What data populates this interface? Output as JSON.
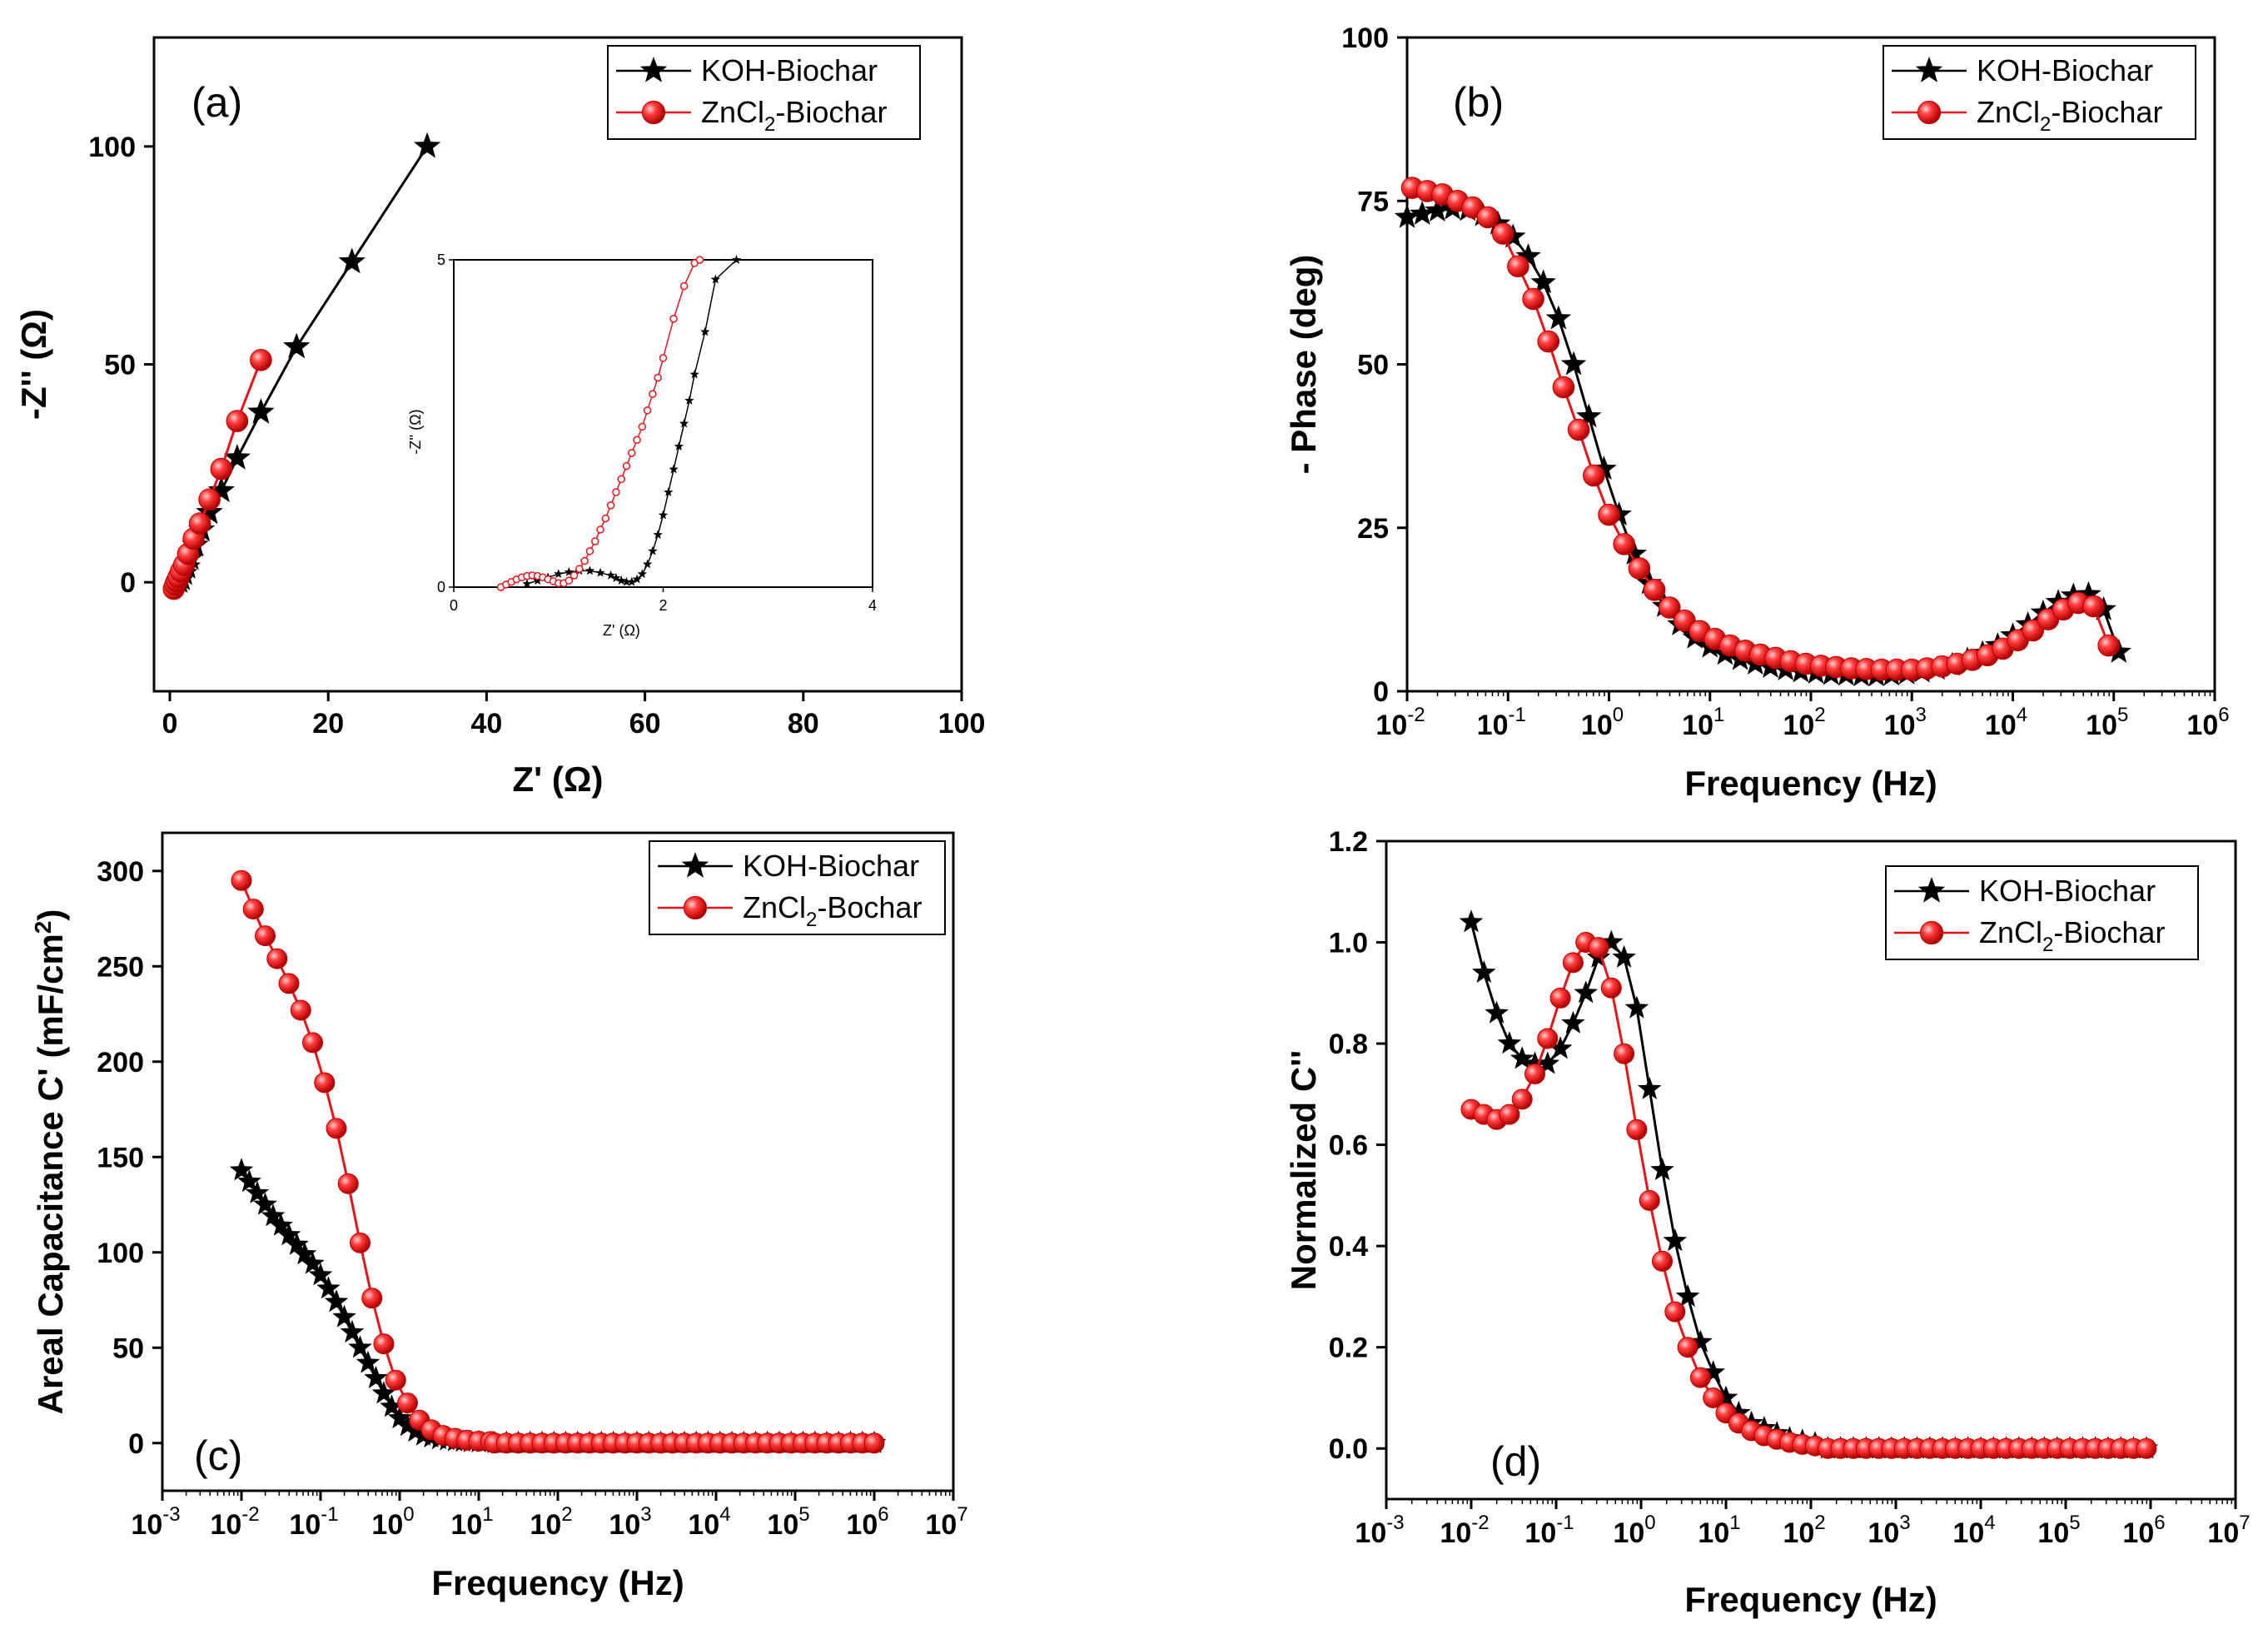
{
  "colors": {
    "koh": "#000000",
    "zncl2": "#e8141b",
    "zncl2_fill": "#ff3c3c"
  },
  "chart_data": [
    {
      "id": "a",
      "type": "scatter",
      "panel_label": "(a)",
      "xlabel": "Z' (Ω)",
      "ylabel": "-Z'' (Ω)",
      "xlim": [
        -2,
        100
      ],
      "ylim": [
        -25,
        125
      ],
      "xticks": [
        "0",
        "20",
        "40",
        "60",
        "80",
        "100"
      ],
      "xtick_values": [
        0,
        20,
        40,
        60,
        80,
        100
      ],
      "yticks": [
        "0",
        "50",
        "100"
      ],
      "ytick_values": [
        0,
        50,
        100
      ],
      "legend": {
        "items": [
          "KOH-Biochar",
          "ZnCl",
          "2",
          "-Biochar"
        ],
        "position": "top-right"
      },
      "series": [
        {
          "name": "KOH-Biochar",
          "marker": "star",
          "x": [
            1.2,
            1.5,
            1.8,
            2.2,
            2.6,
            3.2,
            4.0,
            5.0,
            6.5,
            8.5,
            11.5,
            16.0,
            23.0,
            32.5
          ],
          "y": [
            0.2,
            0.8,
            2.0,
            3.5,
            5.5,
            8.5,
            12.0,
            16.0,
            21.0,
            28.5,
            39.0,
            54.0,
            73.5,
            100.0
          ]
        },
        {
          "name": "ZnCl2-Biochar",
          "marker": "sphere",
          "x": [
            0.5,
            0.7,
            0.9,
            1.1,
            1.4,
            1.8,
            2.3,
            3.0,
            3.8,
            5.0,
            6.5,
            8.5,
            11.5
          ],
          "y": [
            -1.5,
            -0.5,
            0.3,
            1.2,
            2.5,
            4.0,
            6.5,
            10.0,
            13.5,
            19.0,
            26.0,
            37.0,
            51.0
          ]
        }
      ],
      "inset": {
        "xlabel": "Z' (Ω)",
        "ylabel": "-Z'' (Ω)",
        "xlim": [
          0,
          4
        ],
        "ylim": [
          0,
          5
        ],
        "xticks": [
          "0",
          "2",
          "4"
        ],
        "yticks": [
          "0",
          "5"
        ],
        "series": [
          {
            "name": "KOH-Biochar",
            "x": [
              0.7,
              0.8,
              0.9,
              1.0,
              1.1,
              1.2,
              1.3,
              1.4,
              1.5,
              1.55,
              1.6,
              1.65,
              1.7,
              1.75,
              1.8,
              1.85,
              1.9,
              1.95,
              2.0,
              2.05,
              2.1,
              2.15,
              2.2,
              2.25,
              2.3,
              2.4,
              2.5,
              2.7
            ],
            "y": [
              0.05,
              0.1,
              0.15,
              0.2,
              0.23,
              0.25,
              0.25,
              0.22,
              0.18,
              0.14,
              0.1,
              0.08,
              0.08,
              0.12,
              0.2,
              0.35,
              0.55,
              0.8,
              1.1,
              1.45,
              1.8,
              2.15,
              2.5,
              2.85,
              3.25,
              3.9,
              4.7,
              5.0
            ]
          },
          {
            "name": "ZnCl2-Biochar",
            "x": [
              0.45,
              0.5,
              0.55,
              0.6,
              0.65,
              0.7,
              0.75,
              0.8,
              0.85,
              0.9,
              0.95,
              1.0,
              1.05,
              1.1,
              1.15,
              1.2,
              1.25,
              1.3,
              1.35,
              1.4,
              1.45,
              1.5,
              1.55,
              1.6,
              1.65,
              1.7,
              1.75,
              1.8,
              1.85,
              1.9,
              1.95,
              2.0,
              2.1,
              2.2,
              2.3,
              2.35
            ],
            "y": [
              0.0,
              0.04,
              0.08,
              0.12,
              0.15,
              0.17,
              0.18,
              0.17,
              0.15,
              0.12,
              0.09,
              0.06,
              0.06,
              0.1,
              0.18,
              0.28,
              0.4,
              0.55,
              0.7,
              0.88,
              1.05,
              1.25,
              1.45,
              1.65,
              1.85,
              2.05,
              2.25,
              2.45,
              2.7,
              2.95,
              3.2,
              3.5,
              4.1,
              4.6,
              4.95,
              5.0
            ]
          }
        ]
      }
    },
    {
      "id": "b",
      "type": "scatter",
      "panel_label": "(b)",
      "xlabel": "Frequency (Hz)",
      "ylabel": "- Phase (deg)",
      "xscale": "log",
      "xlim_exp": [
        -2,
        6
      ],
      "ylim": [
        0,
        100
      ],
      "xtick_exponents": [
        "-2",
        "-1",
        "0",
        "1",
        "2",
        "3",
        "4",
        "5",
        "6"
      ],
      "xtick_base": "10",
      "yticks": [
        "0",
        "25",
        "50",
        "75",
        "100"
      ],
      "legend": {
        "items": [
          "KOH-Biochar",
          "ZnCl",
          "2",
          "-Biochar"
        ],
        "position": "top-right"
      },
      "series": [
        {
          "name": "KOH-Biochar",
          "marker": "star",
          "x_exp": [
            -2.0,
            -1.85,
            -1.7,
            -1.55,
            -1.4,
            -1.25,
            -1.1,
            -0.95,
            -0.8,
            -0.65,
            -0.5,
            -0.35,
            -0.2,
            -0.05,
            0.1,
            0.25,
            0.4,
            0.55,
            0.7,
            0.85,
            1.0,
            1.15,
            1.3,
            1.45,
            1.6,
            1.75,
            1.9,
            2.05,
            2.2,
            2.35,
            2.5,
            2.65,
            2.8,
            2.95,
            3.1,
            3.25,
            3.4,
            3.55,
            3.7,
            3.85,
            4.0,
            4.15,
            4.3,
            4.45,
            4.6,
            4.75,
            4.9,
            5.05
          ],
          "y": [
            72.5,
            73.0,
            73.5,
            73.8,
            73.6,
            72.8,
            71.5,
            69.5,
            66.5,
            62.5,
            57.0,
            50.0,
            42.0,
            34.0,
            27.0,
            21.0,
            16.5,
            13.0,
            10.2,
            8.2,
            6.8,
            5.7,
            4.9,
            4.2,
            3.7,
            3.3,
            3.0,
            2.8,
            2.6,
            2.5,
            2.4,
            2.4,
            2.5,
            2.7,
            3.0,
            3.4,
            4.0,
            4.8,
            5.8,
            7.0,
            8.5,
            10.2,
            12.0,
            13.6,
            14.6,
            14.8,
            12.5,
            6.0
          ]
        },
        {
          "name": "ZnCl2-Biochar",
          "marker": "sphere",
          "x_exp": [
            -1.95,
            -1.8,
            -1.65,
            -1.5,
            -1.35,
            -1.2,
            -1.05,
            -0.9,
            -0.75,
            -0.6,
            -0.45,
            -0.3,
            -0.15,
            0.0,
            0.15,
            0.3,
            0.45,
            0.6,
            0.75,
            0.9,
            1.05,
            1.2,
            1.35,
            1.5,
            1.65,
            1.8,
            1.95,
            2.1,
            2.25,
            2.4,
            2.55,
            2.7,
            2.85,
            3.0,
            3.15,
            3.3,
            3.45,
            3.6,
            3.75,
            3.9,
            4.05,
            4.2,
            4.35,
            4.5,
            4.65,
            4.8,
            4.95
          ],
          "y": [
            77.0,
            76.5,
            76.0,
            75.0,
            74.0,
            72.5,
            70.0,
            65.0,
            60.0,
            53.5,
            46.5,
            40.0,
            33.0,
            27.0,
            22.5,
            18.8,
            15.5,
            12.8,
            10.8,
            9.2,
            8.0,
            7.0,
            6.2,
            5.6,
            5.1,
            4.6,
            4.2,
            3.9,
            3.7,
            3.5,
            3.4,
            3.3,
            3.3,
            3.3,
            3.5,
            3.8,
            4.2,
            4.8,
            5.5,
            6.5,
            7.8,
            9.3,
            11.0,
            12.5,
            13.5,
            13.0,
            7.0
          ]
        }
      ]
    },
    {
      "id": "c",
      "type": "scatter",
      "panel_label": "(c)",
      "xlabel": "Frequency (Hz)",
      "ylabel": "Areal Capacitance C' (mF/cm",
      "ylabel_sup": "2",
      "ylabel_end": ")",
      "xscale": "log",
      "xlim_exp": [
        -3,
        7
      ],
      "ylim": [
        -25,
        320
      ],
      "xtick_exponents": [
        "-3",
        "-2",
        "-1",
        "0",
        "1",
        "2",
        "3",
        "4",
        "5",
        "6",
        "7"
      ],
      "xtick_base": "10",
      "yticks": [
        "0",
        "50",
        "100",
        "150",
        "200",
        "250",
        "300"
      ],
      "legend": {
        "items": [
          "KOH-Biochar",
          "ZnCl",
          "2",
          "-Bochar"
        ],
        "position": "top-right"
      },
      "series": [
        {
          "name": "KOH-Biochar",
          "marker": "star",
          "x_exp": [
            -2.0,
            -1.9,
            -1.8,
            -1.7,
            -1.6,
            -1.5,
            -1.4,
            -1.3,
            -1.2,
            -1.1,
            -1.0,
            -0.9,
            -0.8,
            -0.7,
            -0.6,
            -0.5,
            -0.4,
            -0.3,
            -0.2,
            -0.1,
            0.0,
            0.1,
            0.2,
            0.3,
            0.4,
            0.5,
            0.6,
            0.7,
            0.8,
            0.9,
            1.0
          ],
          "y": [
            143,
            137,
            131,
            125,
            119,
            114,
            109,
            104,
            99,
            94,
            88,
            81,
            74,
            66,
            58,
            50,
            42,
            34,
            26,
            19,
            13,
            9,
            6,
            4,
            3,
            2,
            1.5,
            1,
            0.8,
            0.5,
            0.4
          ]
        },
        {
          "name": "ZnCl2-Bochar",
          "marker": "sphere",
          "x_exp": [
            -2.0,
            -1.85,
            -1.7,
            -1.55,
            -1.4,
            -1.25,
            -1.1,
            -0.95,
            -0.8,
            -0.65,
            -0.5,
            -0.35,
            -0.2,
            -0.05,
            0.1,
            0.25,
            0.4,
            0.55,
            0.7,
            0.85,
            1.0,
            1.15
          ],
          "y": [
            295,
            280,
            266,
            254,
            241,
            227,
            210,
            189,
            165,
            136,
            105,
            76,
            52,
            33,
            21,
            12,
            7,
            4,
            2.5,
            1.5,
            1,
            0.8
          ]
        }
      ],
      "tail": {
        "from_exp": 1.2,
        "to_exp": 6.0,
        "y": 0
      }
    },
    {
      "id": "d",
      "type": "scatter",
      "panel_label": "(d)",
      "xlabel": "Frequency (Hz)",
      "ylabel": "Normalized C''",
      "xscale": "log",
      "xlim_exp": [
        -3,
        7
      ],
      "ylim": [
        -0.1,
        1.2
      ],
      "xtick_exponents": [
        "-3",
        "-2",
        "-1",
        "0",
        "1",
        "2",
        "3",
        "4",
        "5",
        "6",
        "7"
      ],
      "xtick_base": "10",
      "yticks": [
        "0.0",
        "0.2",
        "0.4",
        "0.6",
        "0.8",
        "1.0",
        "1.2"
      ],
      "legend": {
        "items": [
          "KOH-Biochar",
          "ZnCl",
          "2",
          "-Biochar"
        ],
        "position": "top-right"
      },
      "series": [
        {
          "name": "KOH-Biochar",
          "marker": "star",
          "x_exp": [
            -2.0,
            -1.85,
            -1.7,
            -1.55,
            -1.4,
            -1.25,
            -1.1,
            -0.95,
            -0.8,
            -0.65,
            -0.5,
            -0.35,
            -0.2,
            -0.05,
            0.1,
            0.25,
            0.4,
            0.55,
            0.7,
            0.85,
            1.0,
            1.15,
            1.3,
            1.45,
            1.6,
            1.75,
            1.9,
            2.05
          ],
          "y": [
            1.04,
            0.94,
            0.86,
            0.8,
            0.77,
            0.76,
            0.76,
            0.79,
            0.84,
            0.9,
            0.97,
            1.0,
            0.97,
            0.87,
            0.71,
            0.55,
            0.41,
            0.3,
            0.21,
            0.15,
            0.1,
            0.07,
            0.05,
            0.04,
            0.03,
            0.02,
            0.015,
            0.01
          ]
        },
        {
          "name": "ZnCl2-Biochar",
          "marker": "sphere",
          "x_exp": [
            -2.0,
            -1.85,
            -1.7,
            -1.55,
            -1.4,
            -1.25,
            -1.1,
            -0.95,
            -0.8,
            -0.65,
            -0.5,
            -0.35,
            -0.2,
            -0.05,
            0.1,
            0.25,
            0.4,
            0.55,
            0.7,
            0.85,
            1.0,
            1.15,
            1.3,
            1.45,
            1.6,
            1.75,
            1.9,
            2.05
          ],
          "y": [
            0.67,
            0.66,
            0.65,
            0.66,
            0.69,
            0.74,
            0.81,
            0.89,
            0.96,
            1.0,
            0.99,
            0.91,
            0.78,
            0.63,
            0.49,
            0.37,
            0.27,
            0.2,
            0.14,
            0.1,
            0.07,
            0.05,
            0.035,
            0.025,
            0.018,
            0.012,
            0.008,
            0.005
          ]
        }
      ],
      "tail": {
        "from_exp": 2.2,
        "to_exp": 6.0,
        "y": 0
      }
    }
  ]
}
